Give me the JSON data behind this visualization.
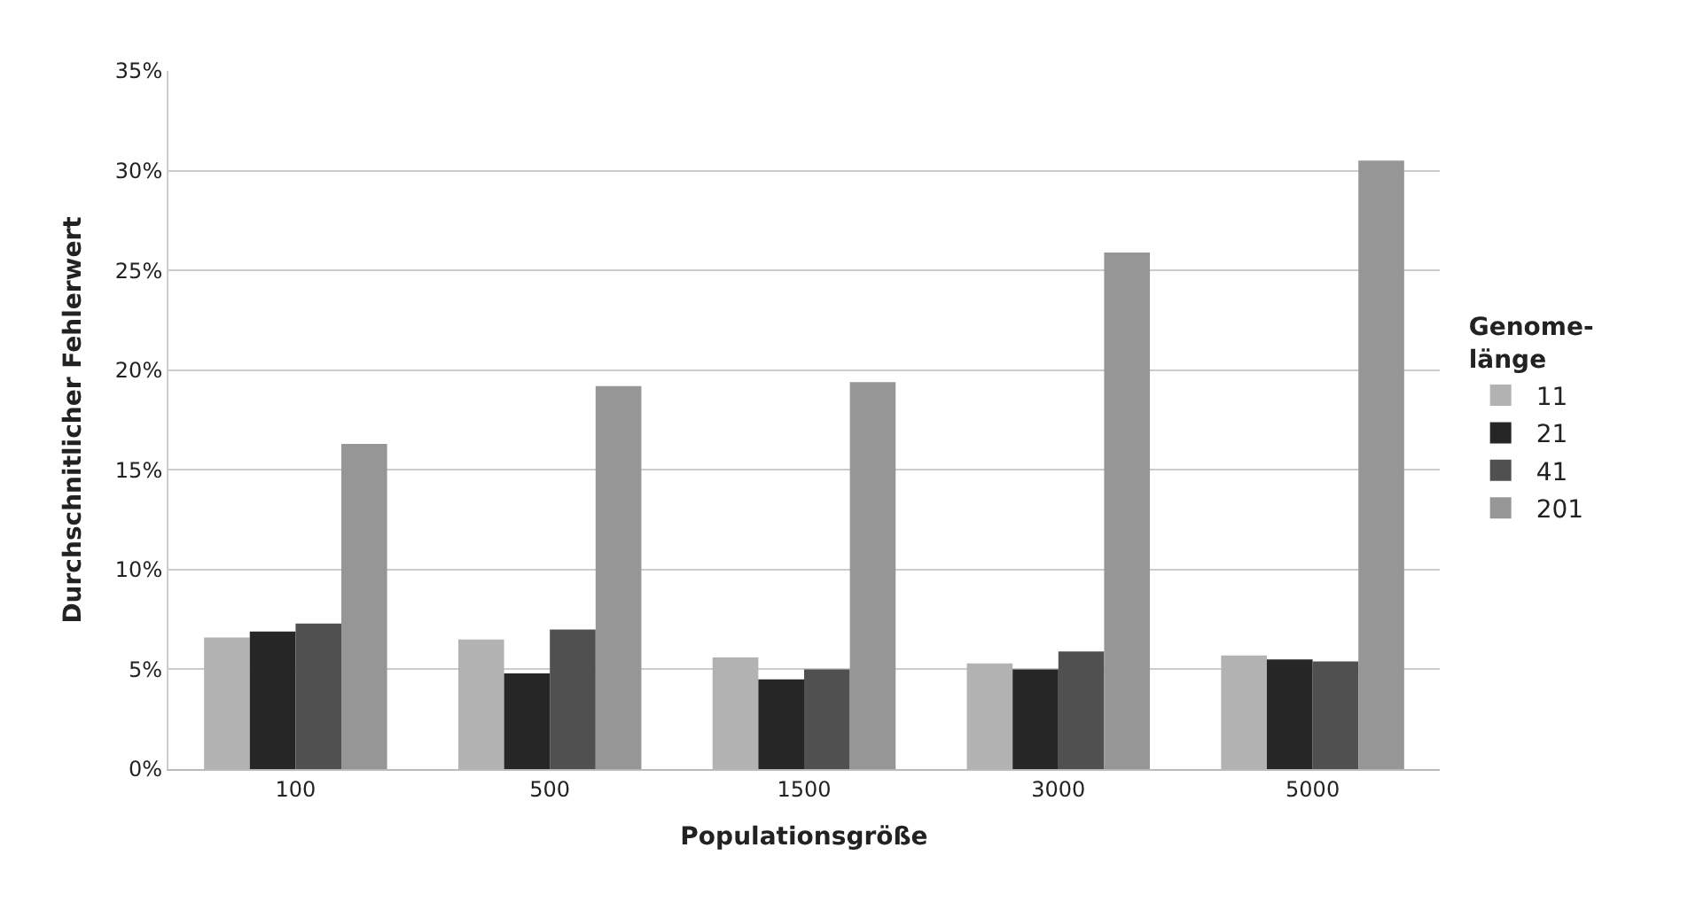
{
  "chart_data": {
    "type": "bar",
    "xlabel": "Populationsgröße",
    "ylabel": "Durchschnitlicher Fehlerwert",
    "legend_title": "Genome-\nlänge",
    "categories": [
      "100",
      "500",
      "1500",
      "3000",
      "5000"
    ],
    "series": [
      {
        "name": "11",
        "color": "#b2b2b2",
        "values": [
          6.6,
          6.5,
          5.6,
          5.3,
          5.7
        ]
      },
      {
        "name": "21",
        "color": "#262626",
        "values": [
          6.9,
          4.8,
          4.5,
          5.0,
          5.5
        ]
      },
      {
        "name": "41",
        "color": "#505050",
        "values": [
          7.3,
          7.0,
          5.0,
          5.9,
          5.4
        ]
      },
      {
        "name": "201",
        "color": "#969696",
        "values": [
          16.3,
          19.2,
          19.4,
          25.9,
          30.5
        ]
      }
    ],
    "ylim": [
      0,
      35
    ],
    "yticks": [
      {
        "value": 0,
        "label": "0%"
      },
      {
        "value": 5,
        "label": "5%"
      },
      {
        "value": 10,
        "label": "10%"
      },
      {
        "value": 15,
        "label": "15%"
      },
      {
        "value": 20,
        "label": "20%"
      },
      {
        "value": 25,
        "label": "25%"
      },
      {
        "value": 30,
        "label": "30%"
      },
      {
        "value": 35,
        "label": "35%"
      }
    ],
    "grid": "y",
    "legend": "right"
  }
}
